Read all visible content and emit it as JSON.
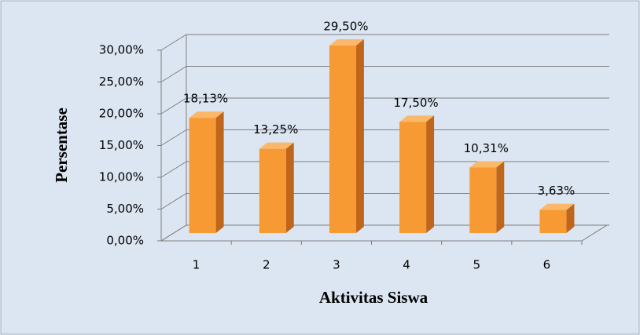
{
  "chart_data": {
    "type": "bar3d",
    "categories": [
      "1",
      "2",
      "3",
      "4",
      "5",
      "6"
    ],
    "values": [
      18.13,
      13.25,
      29.5,
      17.5,
      10.31,
      3.63
    ],
    "value_labels": [
      "18,13%",
      "13,25%",
      "29,50%",
      "17,50%",
      "10,31%",
      "3,63%"
    ],
    "color": "#f79a34",
    "ylim": [
      0,
      30
    ],
    "yticks": [
      {
        "value": 0,
        "label": "0,00%"
      },
      {
        "value": 5,
        "label": "5,00%"
      },
      {
        "value": 10,
        "label": "10,00%"
      },
      {
        "value": 15,
        "label": "15,00%"
      },
      {
        "value": 20,
        "label": "20,00%"
      },
      {
        "value": 25,
        "label": "25,00%"
      },
      {
        "value": 30,
        "label": "30,00%"
      }
    ],
    "ylabel": "Persentase",
    "xlabel": "Aktivitas Siswa",
    "grid": true
  }
}
